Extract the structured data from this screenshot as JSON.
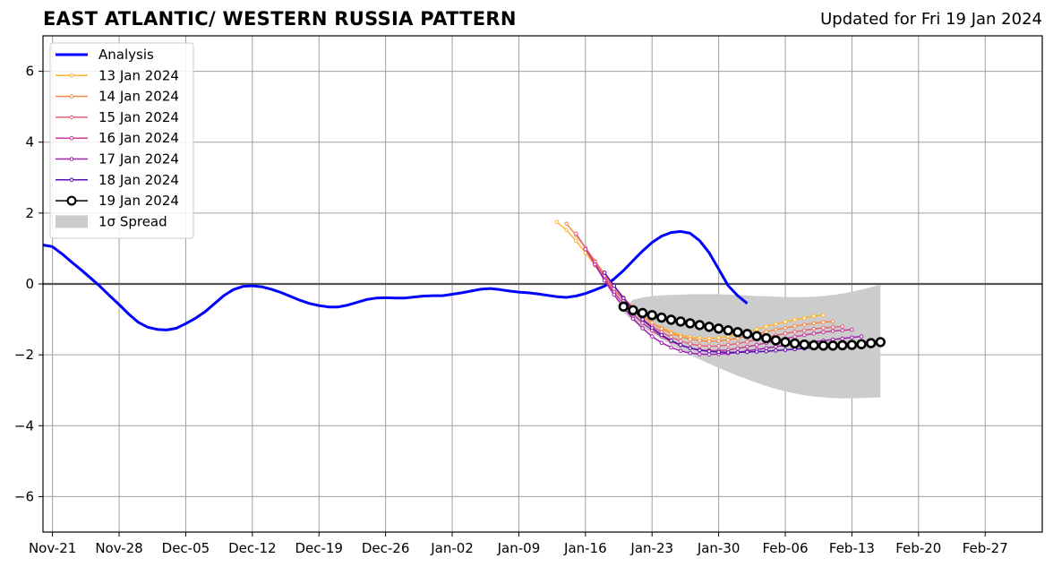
{
  "header": {
    "title": "EAST ATLANTIC/ WESTERN RUSSIA PATTERN",
    "updated": "Updated for Fri 19 Jan 2024"
  },
  "chart_data": {
    "type": "line",
    "title": "EAST ATLANTIC/ WESTERN RUSSIA PATTERN",
    "xlabel": "",
    "ylabel": "",
    "x_range": [
      "2023-11-20",
      "2024-03-04"
    ],
    "ylim": [
      -7,
      7
    ],
    "yticks": [
      -6,
      -4,
      -2,
      0,
      2,
      4,
      6
    ],
    "ytick_labels": [
      "−6",
      "−4",
      "−2",
      "0",
      "2",
      "4",
      "6"
    ],
    "xticks": [
      "2023-11-21",
      "2023-11-28",
      "2023-12-05",
      "2023-12-12",
      "2023-12-19",
      "2023-12-26",
      "2024-01-02",
      "2024-01-09",
      "2024-01-16",
      "2024-01-23",
      "2024-01-30",
      "2024-02-06",
      "2024-02-13",
      "2024-02-20",
      "2024-02-27"
    ],
    "xtick_labels": [
      "Nov-21",
      "Nov-28",
      "Dec-05",
      "Dec-12",
      "Dec-19",
      "Dec-26",
      "Jan-02",
      "Jan-09",
      "Jan-16",
      "Jan-23",
      "Jan-30",
      "Feb-06",
      "Feb-13",
      "Feb-20",
      "Feb-27"
    ],
    "grid": true,
    "legend_position": "upper-left",
    "zero_line": true,
    "colors": {
      "analysis": "#0000ff",
      "spread": "#cccccc",
      "grid": "#a0a0a0",
      "forecast_19": "#000000"
    },
    "series": [
      {
        "name": "Analysis",
        "kind": "analysis",
        "color": "#0000ff",
        "start": "2023-11-20",
        "values": [
          1.1,
          1.05,
          0.85,
          0.62,
          0.4,
          0.17,
          -0.07,
          -0.33,
          -0.58,
          -0.85,
          -1.08,
          -1.22,
          -1.28,
          -1.3,
          -1.25,
          -1.12,
          -0.97,
          -0.79,
          -0.56,
          -0.33,
          -0.16,
          -0.07,
          -0.05,
          -0.08,
          -0.15,
          -0.24,
          -0.35,
          -0.46,
          -0.55,
          -0.61,
          -0.65,
          -0.65,
          -0.6,
          -0.52,
          -0.44,
          -0.4,
          -0.39,
          -0.4,
          -0.4,
          -0.37,
          -0.34,
          -0.33,
          -0.33,
          -0.29,
          -0.25,
          -0.2,
          -0.15,
          -0.13,
          -0.16,
          -0.2,
          -0.23,
          -0.25,
          -0.28,
          -0.32,
          -0.36,
          -0.38,
          -0.34,
          -0.27,
          -0.17,
          -0.06,
          0.14,
          0.38,
          0.66,
          0.93,
          1.17,
          1.35,
          1.45,
          1.48,
          1.43,
          1.22,
          0.88,
          0.42,
          -0.05,
          -0.33,
          -0.55
        ]
      },
      {
        "name": "13 Jan 2024",
        "kind": "forecast",
        "color": "#ffb62e",
        "start": "2024-01-13",
        "values": [
          1.75,
          1.52,
          1.22,
          0.88,
          0.52,
          0.15,
          -0.17,
          -0.46,
          -0.72,
          -0.93,
          -1.1,
          -1.24,
          -1.35,
          -1.44,
          -1.5,
          -1.53,
          -1.54,
          -1.52,
          -1.48,
          -1.42,
          -1.35,
          -1.28,
          -1.2,
          -1.13,
          -1.07,
          -1.01,
          -0.96,
          -0.91,
          -0.88
        ]
      },
      {
        "name": "14 Jan 2024",
        "kind": "forecast",
        "color": "#f5894a",
        "start": "2024-01-14",
        "values": [
          1.7,
          1.38,
          1.02,
          0.65,
          0.28,
          -0.07,
          -0.38,
          -0.66,
          -0.9,
          -1.1,
          -1.26,
          -1.39,
          -1.49,
          -1.56,
          -1.6,
          -1.62,
          -1.61,
          -1.58,
          -1.53,
          -1.47,
          -1.41,
          -1.35,
          -1.29,
          -1.24,
          -1.19,
          -1.15,
          -1.11,
          -1.08,
          -1.06
        ]
      },
      {
        "name": "15 Jan 2024",
        "kind": "forecast",
        "color": "#e5637a",
        "start": "2024-01-15",
        "values": [
          1.42,
          1.02,
          0.62,
          0.22,
          -0.14,
          -0.46,
          -0.75,
          -0.99,
          -1.19,
          -1.36,
          -1.5,
          -1.61,
          -1.69,
          -1.74,
          -1.76,
          -1.75,
          -1.72,
          -1.68,
          -1.63,
          -1.57,
          -1.51,
          -1.45,
          -1.4,
          -1.35,
          -1.31,
          -1.27,
          -1.24,
          -1.22,
          -1.2
        ]
      },
      {
        "name": "16 Jan 2024",
        "kind": "forecast",
        "color": "#c63b96",
        "start": "2024-01-16",
        "values": [
          0.98,
          0.55,
          0.14,
          -0.23,
          -0.56,
          -0.85,
          -1.1,
          -1.31,
          -1.48,
          -1.62,
          -1.73,
          -1.81,
          -1.86,
          -1.88,
          -1.88,
          -1.86,
          -1.82,
          -1.77,
          -1.72,
          -1.66,
          -1.6,
          -1.54,
          -1.49,
          -1.44,
          -1.4,
          -1.36,
          -1.33,
          -1.31,
          -1.29
        ]
      },
      {
        "name": "17 Jan 2024",
        "kind": "forecast",
        "color": "#a11fb2",
        "start": "2024-01-17",
        "values": [
          0.55,
          0.1,
          -0.3,
          -0.66,
          -0.98,
          -1.25,
          -1.48,
          -1.66,
          -1.79,
          -1.89,
          -1.95,
          -1.98,
          -1.99,
          -1.98,
          -1.96,
          -1.93,
          -1.89,
          -1.85,
          -1.81,
          -1.77,
          -1.73,
          -1.69,
          -1.66,
          -1.63,
          -1.6,
          -1.57,
          -1.54,
          -1.51,
          -1.48
        ]
      },
      {
        "name": "18 Jan 2024",
        "kind": "forecast",
        "color": "#5a0ab4",
        "start": "2024-01-18",
        "values": [
          0.32,
          -0.05,
          -0.4,
          -0.72,
          -1.0,
          -1.24,
          -1.44,
          -1.6,
          -1.72,
          -1.81,
          -1.87,
          -1.9,
          -1.92,
          -1.93,
          -1.93,
          -1.92,
          -1.91,
          -1.9,
          -1.88,
          -1.86,
          -1.84,
          -1.82,
          -1.8,
          -1.78,
          -1.75,
          -1.73,
          -1.7,
          -1.68,
          -1.65
        ]
      },
      {
        "name": "19 Jan 2024",
        "kind": "forecast-main",
        "color": "#000000",
        "start": "2024-01-20",
        "values": [
          -0.64,
          -0.74,
          -0.82,
          -0.88,
          -0.95,
          -1.01,
          -1.06,
          -1.11,
          -1.16,
          -1.21,
          -1.26,
          -1.31,
          -1.36,
          -1.41,
          -1.47,
          -1.53,
          -1.59,
          -1.64,
          -1.68,
          -1.71,
          -1.73,
          -1.74,
          -1.74,
          -1.73,
          -1.72,
          -1.7,
          -1.67,
          -1.64
        ]
      }
    ],
    "spread": {
      "name": "1σ Spread",
      "color": "#cccccc",
      "start": "2024-01-20",
      "upper": [
        -0.7,
        -0.45,
        -0.38,
        -0.34,
        -0.32,
        -0.31,
        -0.3,
        -0.29,
        -0.29,
        -0.29,
        -0.29,
        -0.3,
        -0.31,
        -0.32,
        -0.34,
        -0.35,
        -0.36,
        -0.37,
        -0.37,
        -0.37,
        -0.36,
        -0.34,
        -0.31,
        -0.27,
        -0.22,
        -0.16,
        -0.09,
        -0.02
      ],
      "lower": [
        -0.8,
        -1.05,
        -1.22,
        -1.38,
        -1.55,
        -1.71,
        -1.86,
        -2.0,
        -2.13,
        -2.25,
        -2.37,
        -2.48,
        -2.59,
        -2.69,
        -2.79,
        -2.88,
        -2.96,
        -3.03,
        -3.09,
        -3.14,
        -3.18,
        -3.2,
        -3.22,
        -3.23,
        -3.23,
        -3.22,
        -3.21,
        -3.2
      ]
    }
  }
}
